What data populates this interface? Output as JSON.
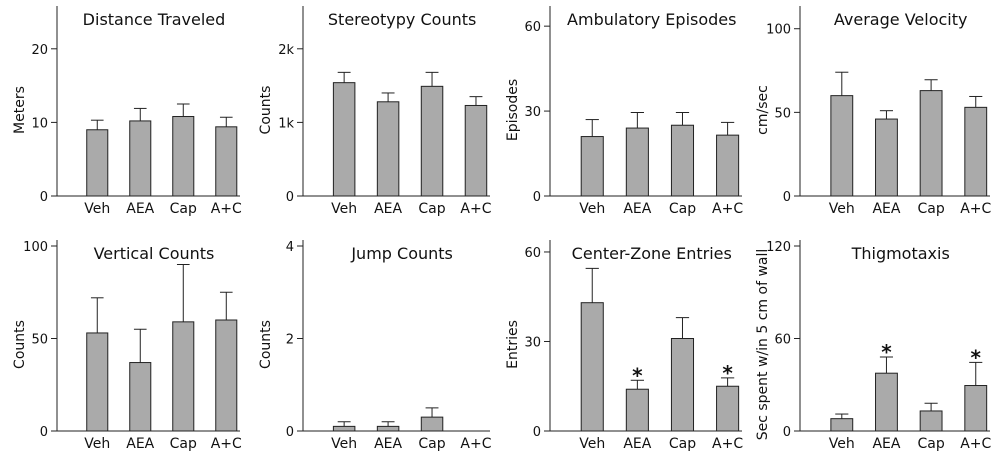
{
  "chart_data": [
    {
      "type": "bar",
      "title": "Distance Traveled",
      "ylabel": "Meters",
      "xlabel": "",
      "categories": [
        "Veh",
        "AEA",
        "Cap",
        "A+C"
      ],
      "ylim": [
        0,
        25
      ],
      "yticks": [
        0,
        10,
        20
      ],
      "ytick_labels": [
        "0",
        "10",
        "20"
      ],
      "values": [
        9,
        10.2,
        10.8,
        9.4
      ],
      "errors": [
        1.3,
        1.7,
        1.7,
        1.3
      ],
      "significant": [
        false,
        false,
        false,
        false
      ],
      "bar_color": "#aaaaaa"
    },
    {
      "type": "bar",
      "title": "Stereotypy Counts",
      "ylabel": "Counts",
      "xlabel": "",
      "categories": [
        "Veh",
        "AEA",
        "Cap",
        "A+C"
      ],
      "ylim": [
        0,
        2500
      ],
      "yticks": [
        0,
        1000,
        2000
      ],
      "ytick_labels": [
        "0",
        "1k",
        "2k"
      ],
      "values": [
        1540,
        1280,
        1490,
        1230
      ],
      "errors": [
        140,
        120,
        190,
        120
      ],
      "significant": [
        false,
        false,
        false,
        false
      ],
      "bar_color": "#aaaaaa"
    },
    {
      "type": "bar",
      "title": "Ambulatory Episodes",
      "ylabel": "Episodes",
      "xlabel": "",
      "categories": [
        "Veh",
        "AEA",
        "Cap",
        "A+C"
      ],
      "ylim": [
        0,
        65
      ],
      "yticks": [
        0,
        30,
        60
      ],
      "ytick_labels": [
        "0",
        "30",
        "60"
      ],
      "values": [
        21,
        24,
        25,
        21.5
      ],
      "errors": [
        6,
        5.5,
        4.5,
        4.5
      ],
      "significant": [
        false,
        false,
        false,
        false
      ],
      "bar_color": "#aaaaaa"
    },
    {
      "type": "bar",
      "title": "Average Velocity",
      "ylabel": "cm/sec",
      "xlabel": "",
      "categories": [
        "Veh",
        "AEA",
        "Cap",
        "A+C"
      ],
      "ylim": [
        0,
        110
      ],
      "yticks": [
        0,
        50,
        100
      ],
      "ytick_labels": [
        "0",
        "50",
        "100"
      ],
      "values": [
        60,
        46,
        63,
        53
      ],
      "errors": [
        14,
        5,
        6.5,
        6.5
      ],
      "significant": [
        false,
        false,
        false,
        false
      ],
      "bar_color": "#aaaaaa"
    },
    {
      "type": "bar",
      "title": "Vertical Counts",
      "ylabel": "Counts",
      "xlabel": "",
      "categories": [
        "Veh",
        "AEA",
        "Cap",
        "A+C"
      ],
      "ylim": [
        0,
        100
      ],
      "yticks": [
        0,
        50,
        100
      ],
      "ytick_labels": [
        "0",
        "50",
        "100"
      ],
      "values": [
        53,
        37,
        59,
        60
      ],
      "errors": [
        19,
        18,
        31,
        15
      ],
      "significant": [
        false,
        false,
        false,
        false
      ],
      "bar_color": "#aaaaaa"
    },
    {
      "type": "bar",
      "title": "Jump Counts",
      "ylabel": "Counts",
      "xlabel": "",
      "categories": [
        "Veh",
        "AEA",
        "Cap",
        "A+C"
      ],
      "ylim": [
        0,
        4
      ],
      "yticks": [
        0,
        2,
        4
      ],
      "ytick_labels": [
        "0",
        "2",
        "4"
      ],
      "values": [
        0.1,
        0.1,
        0.3,
        0
      ],
      "errors": [
        0.1,
        0.1,
        0.2,
        0
      ],
      "significant": [
        false,
        false,
        false,
        false
      ],
      "bar_color": "#aaaaaa"
    },
    {
      "type": "bar",
      "title": "Center-Zone Entries",
      "ylabel": "Entries",
      "xlabel": "",
      "categories": [
        "Veh",
        "AEA",
        "Cap",
        "A+C"
      ],
      "ylim": [
        0,
        62
      ],
      "yticks": [
        0,
        30,
        60
      ],
      "ytick_labels": [
        "0",
        "30",
        "60"
      ],
      "values": [
        43,
        14,
        31,
        15
      ],
      "errors": [
        11.5,
        3,
        7,
        2.8
      ],
      "significant": [
        false,
        true,
        false,
        true
      ],
      "bar_color": "#aaaaaa"
    },
    {
      "type": "bar",
      "title": "Thigmotaxis",
      "ylabel": "Sec spent w/in 5 cm of wall",
      "xlabel": "",
      "categories": [
        "Veh",
        "AEA",
        "Cap",
        "A+C"
      ],
      "ylim": [
        0,
        120
      ],
      "yticks": [
        0,
        60,
        120
      ],
      "ytick_labels": [
        "0",
        "60",
        "120"
      ],
      "values": [
        8,
        37.5,
        13,
        29.5
      ],
      "errors": [
        3,
        10.5,
        5,
        15
      ],
      "significant": [
        false,
        true,
        false,
        true
      ],
      "bar_color": "#aaaaaa"
    }
  ]
}
